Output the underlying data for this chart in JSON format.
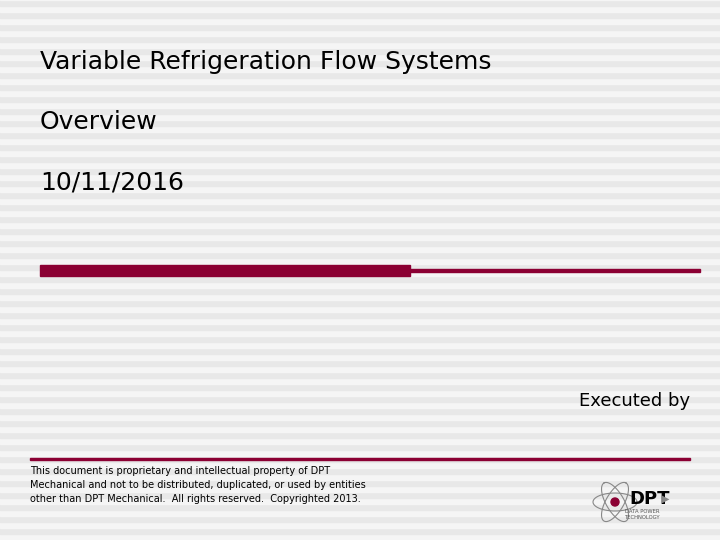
{
  "title_line1": "Variable Refrigeration Flow Systems",
  "title_line2": "Overview",
  "title_line3": "10/11/2016",
  "executed_by_text": "Executed by",
  "footer_text": "This document is proprietary and intellectual property of DPT\nMechanical and not to be distributed, duplicated, or used by entities\nother than DPT Mechanical.  All rights reserved.  Copyrighted 2013.",
  "background_color": "#f2f2f2",
  "stripe_light": "#f5f5f5",
  "stripe_dark": "#e8e8e8",
  "bar_dark_color": "#8b0033",
  "title_font_size": 18,
  "executed_by_font_size": 13,
  "footer_font_size": 7
}
